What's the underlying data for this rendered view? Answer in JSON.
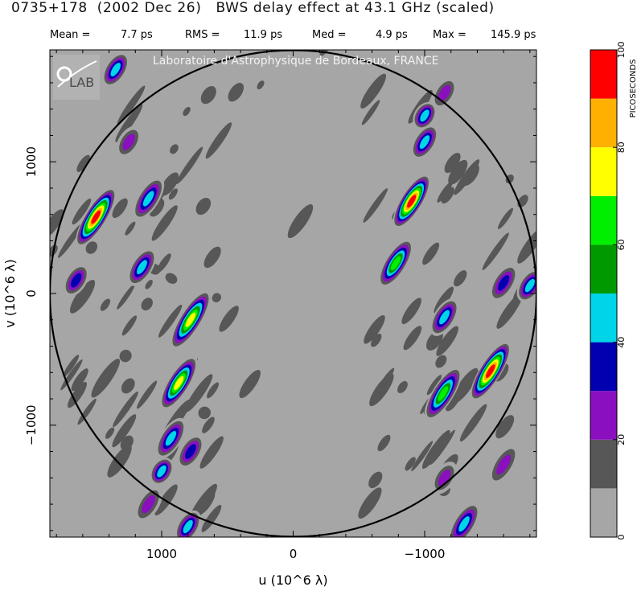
{
  "header": {
    "title": "0735+178  (2002 Dec 26)   BWS delay effect at 43.1 GHz (scaled)",
    "stats": [
      {
        "label": "Mean =",
        "value": "7.7 ps"
      },
      {
        "label": "RMS =",
        "value": "11.9 ps"
      },
      {
        "label": "Med =",
        "value": "4.9 ps"
      },
      {
        "label": "Max =",
        "value": "145.9 ps"
      }
    ]
  },
  "watermark": {
    "text": "Laboratoire d'Astrophysique de Bordeaux, FRANCE",
    "logo_text": "LAB"
  },
  "chart_data": {
    "type": "heatmap",
    "title": "0735+178  (2002 Dec 26)   BWS delay effect at 43.1 GHz (scaled)",
    "xlabel": "u  (10^6 λ)",
    "ylabel": "v  (10^6 λ)",
    "xlim": [
      1850,
      -1850
    ],
    "ylim": [
      -1850,
      1850
    ],
    "x_ticks": [
      {
        "value": 1000,
        "label": "1000"
      },
      {
        "value": 0,
        "label": "0"
      },
      {
        "value": -1000,
        "label": "−1000"
      }
    ],
    "y_ticks": [
      {
        "value": 1000,
        "label": "1000"
      },
      {
        "value": 0,
        "label": "0"
      },
      {
        "value": -1000,
        "label": "−1000"
      }
    ],
    "circle_radius": 1850,
    "colorbar": {
      "label": "PICOSECONDS",
      "min": 0,
      "max": 100,
      "tick_labels": [
        "0",
        "20",
        "40",
        "60",
        "80",
        "100"
      ],
      "levels": [
        {
          "from": 0,
          "to": 10,
          "color": "#a6a6a6"
        },
        {
          "from": 10,
          "to": 20,
          "color": "#575757"
        },
        {
          "from": 20,
          "to": 30,
          "color": "#8a0fbf"
        },
        {
          "from": 30,
          "to": 40,
          "color": "#0000b0"
        },
        {
          "from": 40,
          "to": 50,
          "color": "#00d4e8"
        },
        {
          "from": 50,
          "to": 60,
          "color": "#009a00"
        },
        {
          "from": 60,
          "to": 70,
          "color": "#00ee00"
        },
        {
          "from": 70,
          "to": 80,
          "color": "#ffff00"
        },
        {
          "from": 80,
          "to": 90,
          "color": "#ffb000"
        },
        {
          "from": 90,
          "to": 100,
          "color": "#ff0000"
        }
      ]
    },
    "features": [
      {
        "u": 1500,
        "v": 580,
        "peak": 95,
        "length": 450
      },
      {
        "u": 1100,
        "v": 720,
        "peak": 48,
        "length": 300
      },
      {
        "u": 1150,
        "v": 200,
        "peak": 45,
        "length": 250
      },
      {
        "u": 1350,
        "v": 1700,
        "peak": 45,
        "length": 220
      },
      {
        "u": 1250,
        "v": 1150,
        "peak": 28,
        "length": 200
      },
      {
        "u": 1650,
        "v": 100,
        "peak": 35,
        "length": 200
      },
      {
        "u": 780,
        "v": -200,
        "peak": 75,
        "length": 450
      },
      {
        "u": 870,
        "v": -680,
        "peak": 70,
        "length": 400
      },
      {
        "u": 930,
        "v": -1100,
        "peak": 45,
        "length": 280
      },
      {
        "u": 1000,
        "v": -1350,
        "peak": 45,
        "length": 150
      },
      {
        "u": 780,
        "v": -1200,
        "peak": 35,
        "length": 220
      },
      {
        "u": 800,
        "v": -1770,
        "peak": 45,
        "length": 200
      },
      {
        "u": 1100,
        "v": -1600,
        "peak": 28,
        "length": 250
      },
      {
        "u": -900,
        "v": 700,
        "peak": 90,
        "length": 400
      },
      {
        "u": -780,
        "v": 230,
        "peak": 65,
        "length": 350
      },
      {
        "u": -1000,
        "v": 1150,
        "peak": 45,
        "length": 220
      },
      {
        "u": -1000,
        "v": 1350,
        "peak": 40,
        "length": 150
      },
      {
        "u": -1150,
        "v": 1520,
        "peak": 28,
        "length": 200
      },
      {
        "u": -1500,
        "v": -590,
        "peak": 92,
        "length": 450
      },
      {
        "u": -1140,
        "v": -760,
        "peak": 68,
        "length": 400
      },
      {
        "u": -1150,
        "v": -180,
        "peak": 45,
        "length": 250
      },
      {
        "u": -1600,
        "v": 80,
        "peak": 38,
        "length": 250
      },
      {
        "u": -1800,
        "v": 60,
        "peak": 45,
        "length": 200
      },
      {
        "u": -1300,
        "v": -1750,
        "peak": 40,
        "length": 300
      },
      {
        "u": -1600,
        "v": -1300,
        "peak": 28,
        "length": 300
      },
      {
        "u": -1150,
        "v": -1400,
        "peak": 28,
        "length": 200
      }
    ]
  }
}
